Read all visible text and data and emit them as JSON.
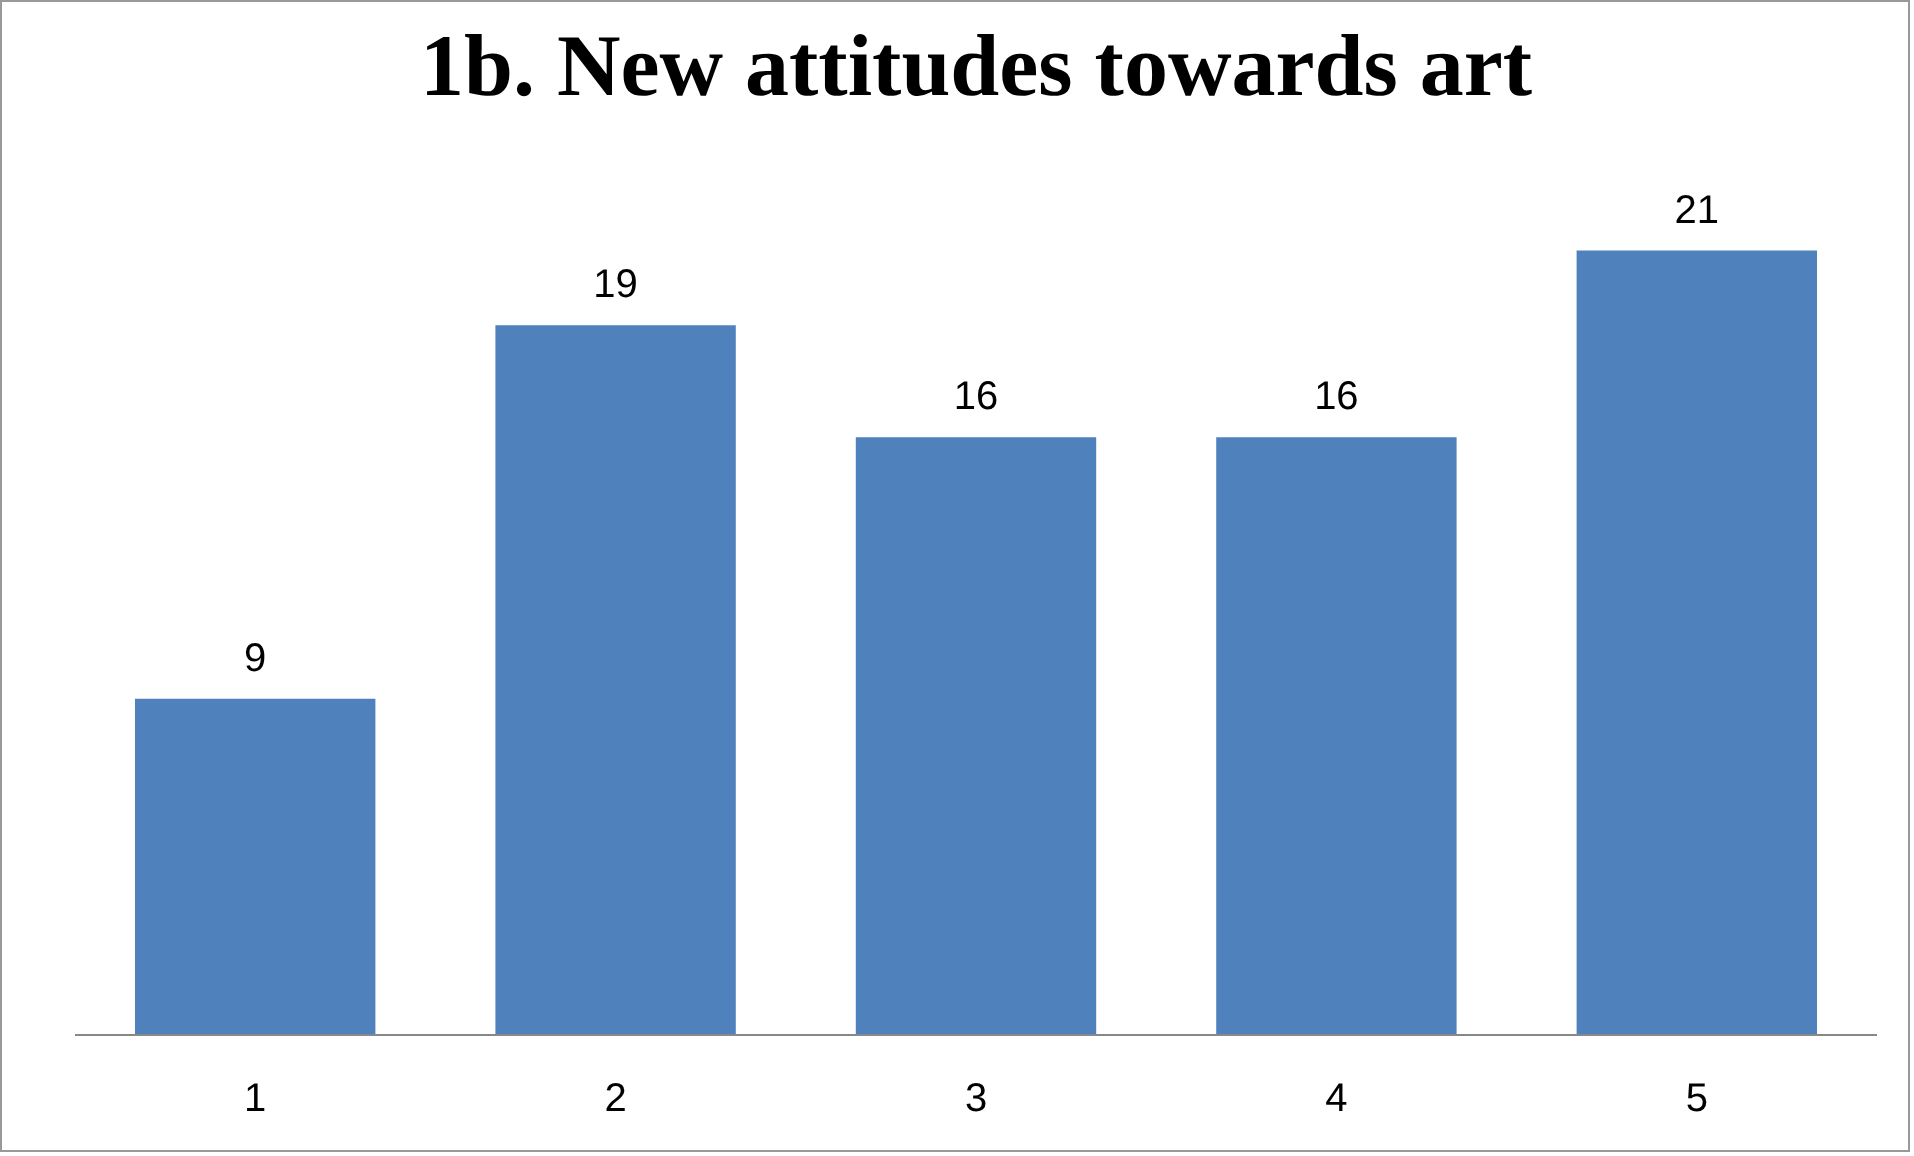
{
  "chart_data": {
    "type": "bar",
    "title": "1b. New attitudes towards art",
    "categories": [
      "1",
      "2",
      "3",
      "4",
      "5"
    ],
    "values": [
      9,
      19,
      16,
      16,
      21
    ],
    "color": "#4f81bd",
    "data_labels": true,
    "grid": false
  }
}
